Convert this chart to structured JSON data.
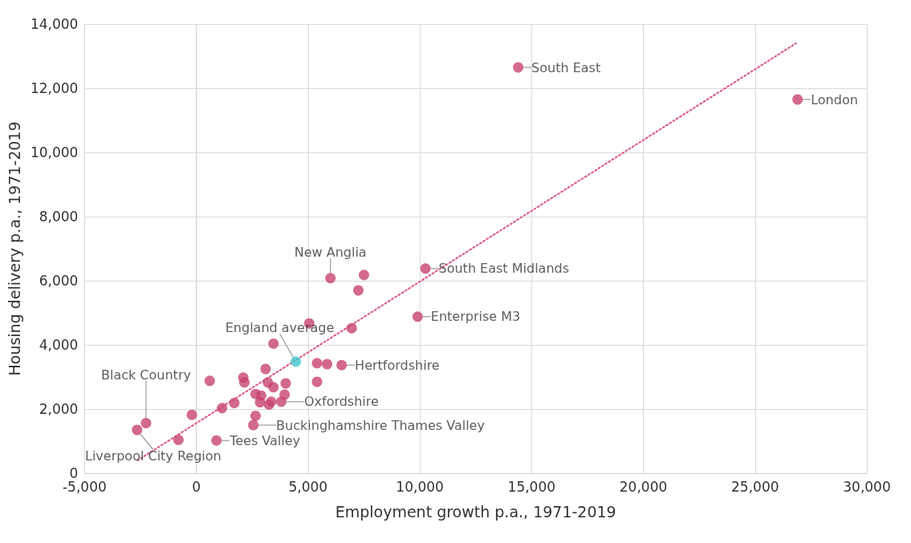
{
  "chart_data": {
    "type": "scatter",
    "xlabel": "Employment growth p.a., 1971-2019",
    "ylabel": "Housing delivery p.a., 1971-2019",
    "xlim": [
      -5000,
      30000
    ],
    "ylim": [
      0,
      14000
    ],
    "xticks": [
      {
        "value": -5000,
        "label": "-5,000"
      },
      0,
      {
        "value": 5000,
        "label": "5,000"
      },
      {
        "value": 10000,
        "label": "10,000"
      },
      {
        "value": 15000,
        "label": "15,000"
      },
      {
        "value": 20000,
        "label": "20,000"
      },
      {
        "value": 25000,
        "label": "25,000"
      },
      {
        "value": 30000,
        "label": "30,000"
      }
    ],
    "yticks": [
      0,
      {
        "value": 2000,
        "label": "2,000"
      },
      {
        "value": 4000,
        "label": "4,000"
      },
      {
        "value": 6000,
        "label": "6,000"
      },
      {
        "value": 8000,
        "label": "8,000"
      },
      {
        "value": 10000,
        "label": "10,000"
      },
      {
        "value": 12000,
        "label": "12,000"
      },
      {
        "value": 14000,
        "label": "14,000"
      }
    ],
    "grid": true,
    "marker": "circle",
    "series": [
      {
        "x": [
          14400,
          26900,
          10250,
          9900,
          6500,
          3800,
          2550,
          900,
          6000,
          4450,
          -2250,
          -2650,
          7500,
          7250,
          5050,
          6950,
          3450,
          5400,
          5850,
          5400,
          3100,
          600,
          2100,
          2150,
          3200,
          3450,
          4000,
          2650,
          2900,
          3950,
          2850,
          3350,
          3250,
          1700,
          1150,
          -200,
          2650,
          -800
        ],
        "values": [
          12650,
          11650,
          6380,
          4880,
          3370,
          2230,
          1500,
          1020,
          6080,
          3480,
          1560,
          1350,
          6180,
          5700,
          4670,
          4520,
          4040,
          3430,
          3400,
          2850,
          3250,
          2880,
          2980,
          2830,
          2830,
          2680,
          2800,
          2470,
          2420,
          2450,
          2210,
          2230,
          2140,
          2190,
          2030,
          1820,
          1790,
          1040
        ],
        "colors": [
          "#c8436f",
          "#c8436f",
          "#c8436f",
          "#c8436f",
          "#c8436f",
          "#c8436f",
          "#c8436f",
          "#c8436f",
          "#c8436f",
          "#3fc6c9",
          "#c8436f",
          "#c8436f",
          "#c8436f",
          "#c8436f",
          "#c8436f",
          "#c8436f",
          "#c8436f",
          "#c8436f",
          "#c8436f",
          "#c8436f",
          "#c8436f",
          "#c8436f",
          "#c8436f",
          "#c8436f",
          "#c8436f",
          "#c8436f",
          "#c8436f",
          "#c8436f",
          "#c8436f",
          "#c8436f",
          "#c8436f",
          "#c8436f",
          "#c8436f",
          "#c8436f",
          "#c8436f",
          "#c8436f",
          "#c8436f",
          "#c8436f"
        ]
      },
      {
        "type": "line",
        "x": [
          -2630,
          26830
        ],
        "values": [
          400,
          13400
        ],
        "color": "#d9557e",
        "line_style": "dotted",
        "marker": "none"
      }
    ],
    "annotations": [
      {
        "text": "South East",
        "x": 14400,
        "y": 12650
      },
      {
        "text": "London",
        "x": 26900,
        "y": 11650
      },
      {
        "text": "South East Midlands",
        "x": 10250,
        "y": 6380
      },
      {
        "text": "Enterprise M3",
        "x": 9900,
        "y": 4880
      },
      {
        "text": "Hertfordshire",
        "x": 6500,
        "y": 3370
      },
      {
        "text": "Oxfordshire",
        "x": 3800,
        "y": 2230
      },
      {
        "text": "Buckinghamshire Thames Valley",
        "x": 2550,
        "y": 1500
      },
      {
        "text": "Tees Valley",
        "x": 900,
        "y": 1020
      },
      {
        "text": "New Anglia",
        "x": 6000,
        "y": 6080
      },
      {
        "text": "England average",
        "x": 4450,
        "y": 3480
      },
      {
        "text": "Black Country",
        "x": -2250,
        "y": 1560
      },
      {
        "text": "Liverpool City Region",
        "x": -2650,
        "y": 1350
      }
    ]
  }
}
